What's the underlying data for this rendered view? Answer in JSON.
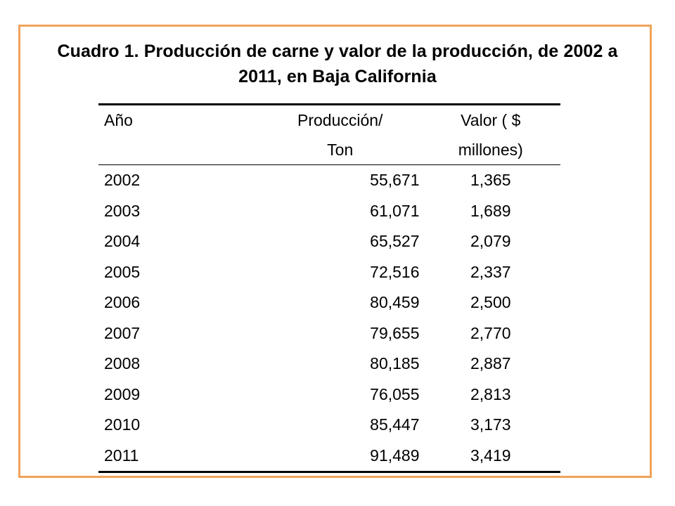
{
  "title": "Cuadro 1. Producción de carne y valor de la producción, de 2002 a 2011, en Baja California",
  "table": {
    "headers": {
      "year": "Año",
      "production_line1": "Producción/",
      "production_line2": "Ton",
      "value_line1": "Valor ( $",
      "value_line2": "millones)"
    },
    "rows": [
      {
        "year": "2002",
        "production": "55,671",
        "value": "1,365"
      },
      {
        "year": "2003",
        "production": "61,071",
        "value": "1,689"
      },
      {
        "year": "2004",
        "production": "65,527",
        "value": "2,079"
      },
      {
        "year": "2005",
        "production": "72,516",
        "value": "2,337"
      },
      {
        "year": "2006",
        "production": "80,459",
        "value": "2,500"
      },
      {
        "year": "2007",
        "production": "79,655",
        "value": "2,770"
      },
      {
        "year": "2008",
        "production": "80,185",
        "value": "2,887"
      },
      {
        "year": "2009",
        "production": "76,055",
        "value": "2,813"
      },
      {
        "year": "2010",
        "production": "85,447",
        "value": "3,173"
      },
      {
        "year": "2011",
        "production": "91,489",
        "value": "3,419"
      }
    ]
  },
  "colors": {
    "frame_border": "#f0a35b",
    "text": "#000000",
    "background": "#ffffff"
  }
}
